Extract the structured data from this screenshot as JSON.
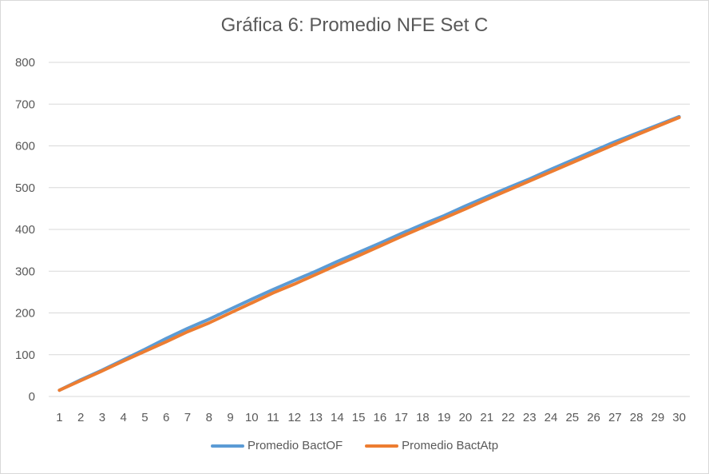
{
  "chart_data": {
    "type": "line",
    "title": "Gráfica 6: Promedio NFE Set C",
    "xlabel": "",
    "ylabel": "",
    "ylim": [
      0,
      800
    ],
    "yticks": [
      0,
      100,
      200,
      300,
      400,
      500,
      600,
      700,
      800
    ],
    "grid": true,
    "legend_position": "bottom",
    "categories": [
      1,
      2,
      3,
      4,
      5,
      6,
      7,
      8,
      9,
      10,
      11,
      12,
      13,
      14,
      15,
      16,
      17,
      18,
      19,
      20,
      21,
      22,
      23,
      24,
      25,
      26,
      27,
      28,
      29,
      30
    ],
    "series": [
      {
        "name": "Promedio BactOF",
        "color": "#5b9bd5",
        "values": [
          15,
          40,
          63,
          88,
          113,
          139,
          163,
          185,
          209,
          233,
          256,
          278,
          300,
          323,
          345,
          367,
          390,
          412,
          433,
          456,
          478,
          500,
          521,
          544,
          566,
          588,
          610,
          630,
          650,
          670
        ]
      },
      {
        "name": "Promedio BactAtp",
        "color": "#ed7d31",
        "values": [
          15,
          38,
          61,
          85,
          108,
          131,
          155,
          176,
          200,
          224,
          248,
          269,
          292,
          315,
          337,
          360,
          383,
          405,
          427,
          449,
          472,
          494,
          516,
          538,
          560,
          582,
          604,
          626,
          647,
          668
        ]
      }
    ]
  }
}
